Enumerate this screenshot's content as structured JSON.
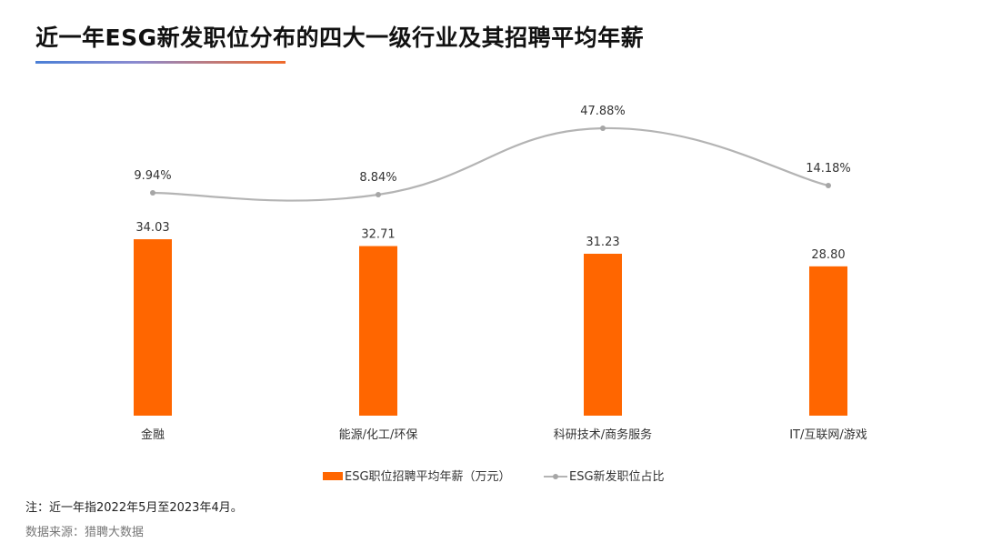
{
  "title": "近一年ESG新发职位分布的四大一级行业及其招聘平均年薪",
  "note": "注：近一年指2022年5月至2023年4月。",
  "source": "数据来源：猎聘大数据",
  "colors": {
    "bar": "#ff6600",
    "line": "#b4b4b4",
    "text": "#333333"
  },
  "chart_data": {
    "type": "bar",
    "categories": [
      "金融",
      "能源/化工/环保",
      "科研技术/商务服务",
      "IT/互联网/游戏"
    ],
    "series": [
      {
        "name": "ESG职位招聘平均年薪（万元）",
        "type": "bar",
        "values": [
          34.03,
          32.71,
          31.23,
          28.8
        ],
        "labels": [
          "34.03",
          "32.71",
          "31.23",
          "28.80"
        ]
      },
      {
        "name": "ESG新发职位占比",
        "type": "line",
        "smooth": true,
        "values": [
          9.94,
          8.84,
          47.88,
          14.18
        ],
        "labels": [
          "9.94%",
          "8.84%",
          "47.88%",
          "14.18%"
        ]
      }
    ],
    "legend": "bottom",
    "grid": false
  }
}
